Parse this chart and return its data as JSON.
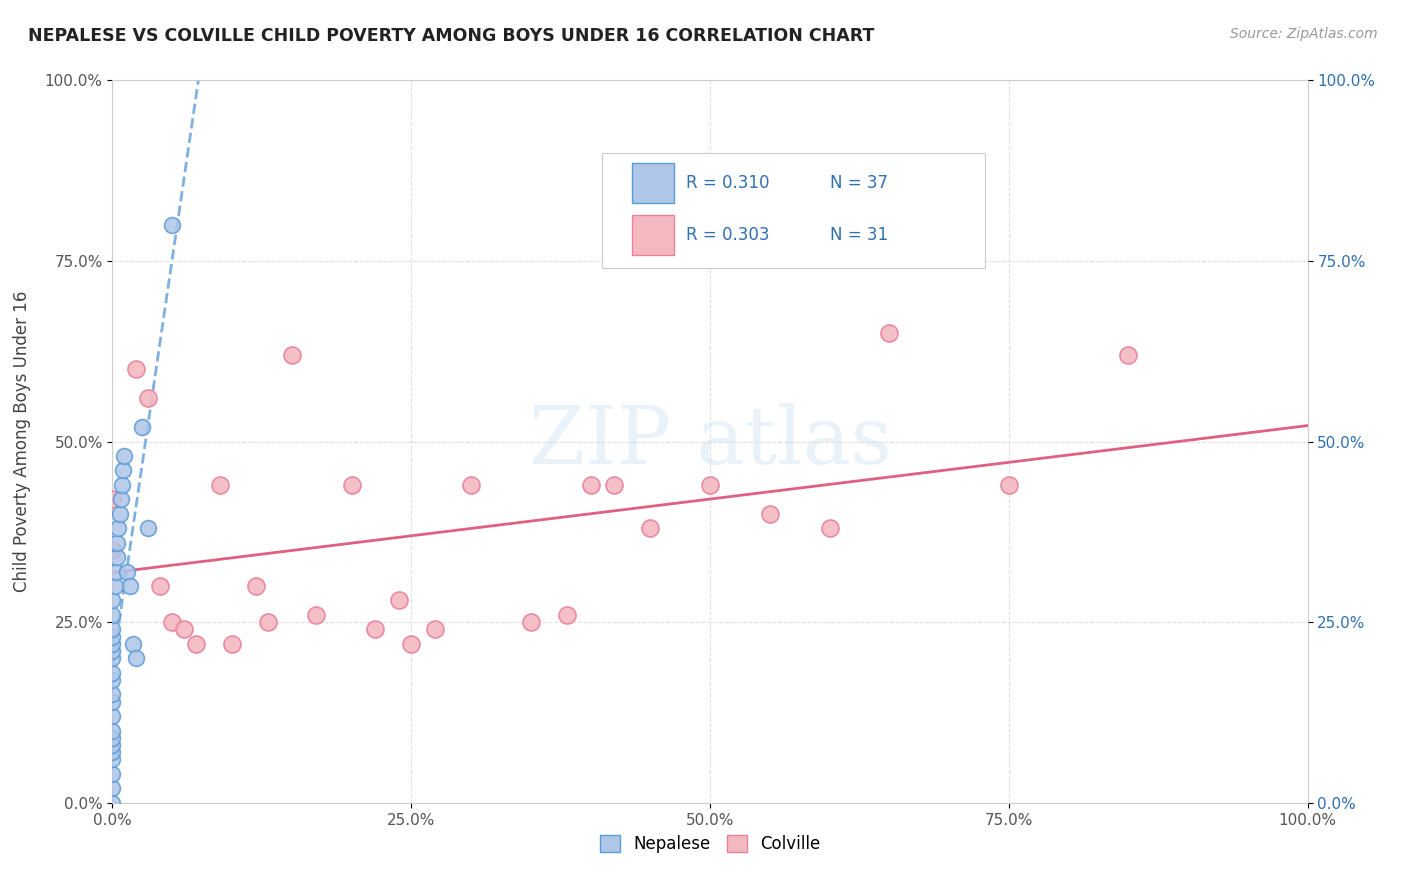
{
  "title": "NEPALESE VS COLVILLE CHILD POVERTY AMONG BOYS UNDER 16 CORRELATION CHART",
  "source": "Source: ZipAtlas.com",
  "ylabel": "Child Poverty Among Boys Under 16",
  "xlim": [
    0,
    1.0
  ],
  "ylim": [
    0,
    1.0
  ],
  "xtick_labels": [
    "0.0%",
    "25.0%",
    "50.0%",
    "75.0%",
    "100.0%"
  ],
  "xtick_vals": [
    0.0,
    0.25,
    0.5,
    0.75,
    1.0
  ],
  "ytick_labels": [
    "0.0%",
    "25.0%",
    "50.0%",
    "75.0%",
    "100.0%"
  ],
  "ytick_vals": [
    0.0,
    0.25,
    0.5,
    0.75,
    1.0
  ],
  "nepalese_color": "#aec6e8",
  "colville_color": "#f4b8c1",
  "nepalese_edge": "#5b9bd5",
  "colville_edge": "#e8829a",
  "nepalese_R": 0.31,
  "nepalese_N": 37,
  "colville_R": 0.303,
  "colville_N": 31,
  "legend_blue_color": "#aec6e8",
  "legend_pink_color": "#f4b8c1",
  "legend_text_color": "#3070b0",
  "nepalese_trendline_color": "#7fb0e0",
  "colville_trendline_color": "#e06080",
  "background_color": "#ffffff",
  "grid_color": "#e0e0e0",
  "nepalese_x": [
    0.0,
    0.0,
    0.0,
    0.0,
    0.0,
    0.0,
    0.0,
    0.0,
    0.0,
    0.0,
    0.0,
    0.0,
    0.0,
    0.0,
    0.0,
    0.0,
    0.0,
    0.0,
    0.0,
    0.0,
    0.002,
    0.003,
    0.004,
    0.004,
    0.005,
    0.006,
    0.007,
    0.008,
    0.009,
    0.01,
    0.012,
    0.015,
    0.017,
    0.02,
    0.025,
    0.03,
    0.05
  ],
  "nepalese_y": [
    0.0,
    0.02,
    0.04,
    0.06,
    0.07,
    0.08,
    0.09,
    0.1,
    0.12,
    0.14,
    0.15,
    0.17,
    0.18,
    0.2,
    0.21,
    0.22,
    0.23,
    0.24,
    0.26,
    0.28,
    0.3,
    0.32,
    0.34,
    0.36,
    0.38,
    0.4,
    0.42,
    0.44,
    0.46,
    0.48,
    0.32,
    0.3,
    0.22,
    0.2,
    0.52,
    0.38,
    0.8
  ],
  "colville_x": [
    0.0,
    0.0,
    0.02,
    0.03,
    0.04,
    0.05,
    0.06,
    0.07,
    0.09,
    0.1,
    0.12,
    0.13,
    0.15,
    0.17,
    0.2,
    0.22,
    0.24,
    0.25,
    0.27,
    0.3,
    0.35,
    0.38,
    0.4,
    0.42,
    0.45,
    0.5,
    0.55,
    0.6,
    0.65,
    0.75,
    0.85
  ],
  "colville_y": [
    0.35,
    0.42,
    0.6,
    0.56,
    0.3,
    0.25,
    0.24,
    0.22,
    0.44,
    0.22,
    0.3,
    0.25,
    0.62,
    0.26,
    0.44,
    0.24,
    0.28,
    0.22,
    0.24,
    0.44,
    0.25,
    0.26,
    0.44,
    0.44,
    0.38,
    0.44,
    0.4,
    0.38,
    0.65,
    0.44,
    0.62
  ]
}
